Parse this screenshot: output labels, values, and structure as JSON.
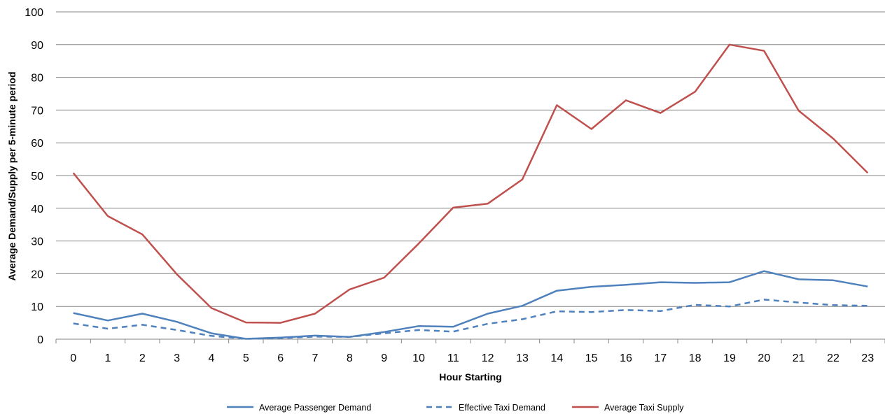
{
  "chart_data": {
    "type": "line",
    "xlabel": "Hour Starting",
    "ylabel": "Average Demand/Supply per 5-minute period",
    "ylim": [
      0,
      100
    ],
    "y_ticks": [
      0,
      10,
      20,
      30,
      40,
      50,
      60,
      70,
      80,
      90,
      100
    ],
    "categories": [
      "0",
      "1",
      "2",
      "3",
      "4",
      "5",
      "6",
      "7",
      "8",
      "9",
      "10",
      "11",
      "12",
      "13",
      "14",
      "15",
      "16",
      "17",
      "18",
      "19",
      "20",
      "21",
      "22",
      "23"
    ],
    "grid": "horizontal",
    "legend_position": "bottom",
    "series": [
      {
        "name": "Average Passenger Demand",
        "color": "#4f81bd",
        "dash": "solid",
        "values": [
          8.0,
          5.7,
          7.8,
          5.3,
          1.8,
          0.1,
          0.5,
          1.1,
          0.7,
          2.2,
          4.0,
          3.8,
          7.8,
          10.2,
          14.8,
          16.0,
          16.6,
          17.4,
          17.2,
          17.4,
          20.8,
          18.3,
          18.0,
          16.1
        ]
      },
      {
        "name": "Effective Taxi Demand",
        "color": "#4f81bd",
        "dash": "dashed",
        "values": [
          4.8,
          3.2,
          4.4,
          2.8,
          1.0,
          0.1,
          0.3,
          0.8,
          0.7,
          1.8,
          2.8,
          2.3,
          4.7,
          6.1,
          8.5,
          8.3,
          8.9,
          8.6,
          10.5,
          10.0,
          12.1,
          11.2,
          10.4,
          10.2
        ]
      },
      {
        "name": "Average Taxi Supply",
        "color": "#c0504d",
        "dash": "solid",
        "values": [
          50.8,
          37.6,
          32.0,
          19.8,
          9.5,
          5.1,
          5.0,
          7.8,
          15.2,
          18.8,
          29.2,
          40.2,
          41.4,
          48.8,
          71.5,
          64.2,
          73.0,
          69.1,
          75.6,
          90.0,
          88.1,
          69.8,
          61.3,
          50.8
        ]
      }
    ]
  }
}
